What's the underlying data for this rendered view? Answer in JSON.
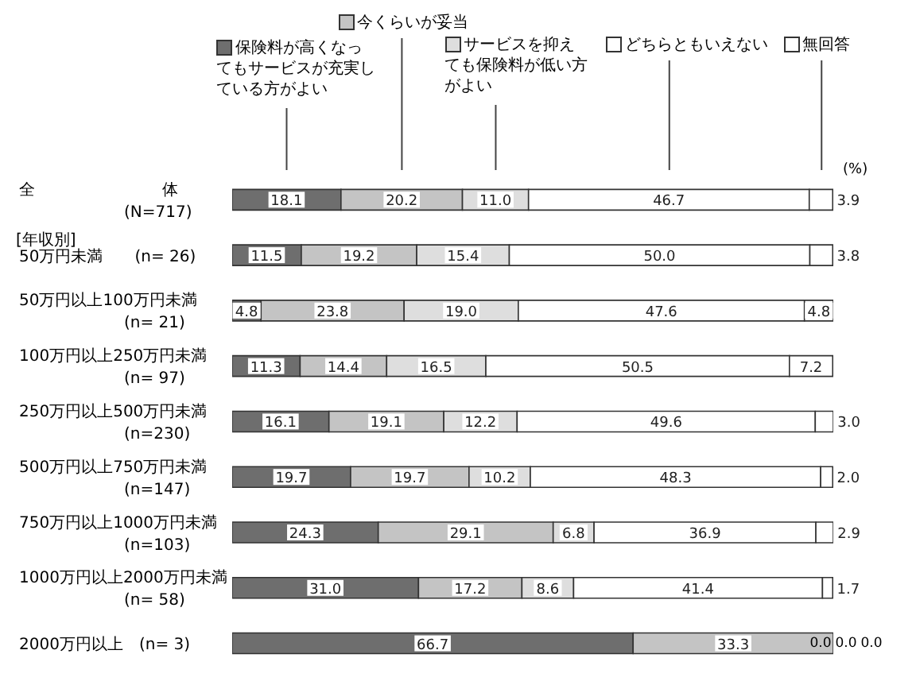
{
  "chart_data": {
    "type": "bar",
    "orientation": "horizontal",
    "stacked": true,
    "legend": "top",
    "data_labels": true,
    "grid": false,
    "categories": [
      "全　　　　　　　　体\n(N=717)",
      "50万円未満　　(n= 26)",
      "50万円以上100万円未満\n(n= 21)",
      "100万円以上250万円未満\n(n= 97)",
      "250万円以上500万円未満\n(n=230)",
      "500万円以上750万円未満\n(n=147)",
      "750万円以上1000万円未満\n(n=103)",
      "1000万円以上2000万円未満\n(n= 58)",
      "2000万円以上　(n=  3)"
    ],
    "series": [
      {
        "name": "保険料が高くなってもサービスが充実している方がよい",
        "color": "#6e6e6e",
        "values": [
          18.1,
          11.5,
          4.8,
          11.3,
          16.1,
          19.7,
          24.3,
          31.0,
          66.7
        ],
        "value_labels": [
          "18.1",
          "11.5",
          "4.8",
          "11.3",
          "16.1",
          "19.7",
          "24.3",
          "31.0",
          "66.7"
        ]
      },
      {
        "name": "今くらいが妥当",
        "color": "#c4c4c4",
        "values": [
          20.2,
          19.2,
          23.8,
          14.4,
          19.1,
          19.7,
          29.1,
          17.2,
          33.3
        ],
        "value_labels": [
          "20.2",
          "19.2",
          "23.8",
          "14.4",
          "19.1",
          "19.7",
          "29.1",
          "17.2",
          "33.3"
        ]
      },
      {
        "name": "サービスを抑えても保険料が低い方がよい",
        "color": "#dedede",
        "values": [
          11.0,
          15.4,
          19.0,
          16.5,
          12.2,
          10.2,
          6.8,
          8.6,
          0.0
        ],
        "value_labels": [
          "11.0",
          "15.4",
          "19.0",
          "16.5",
          "12.2",
          "10.2",
          "6.8",
          "8.6",
          "0.0"
        ]
      },
      {
        "name": "どちらともいえない",
        "color": "#ffffff",
        "values": [
          46.7,
          50.0,
          47.6,
          50.5,
          49.6,
          48.3,
          36.9,
          41.4,
          0.0
        ],
        "value_labels": [
          "46.7",
          "50.0",
          "47.6",
          "50.5",
          "49.6",
          "48.3",
          "36.9",
          "41.4",
          "0.0"
        ]
      },
      {
        "name": "無回答",
        "color": "#ffffff",
        "values": [
          3.9,
          3.8,
          4.8,
          7.2,
          3.0,
          2.0,
          2.9,
          1.7,
          0.0
        ],
        "value_labels": [
          "3.9",
          "3.8",
          "4.8",
          "7.2",
          "3.0",
          "2.0",
          "2.9",
          "1.7",
          "0.0"
        ]
      }
    ],
    "annotations": [
      "(%)",
      "[年収別]"
    ]
  }
}
